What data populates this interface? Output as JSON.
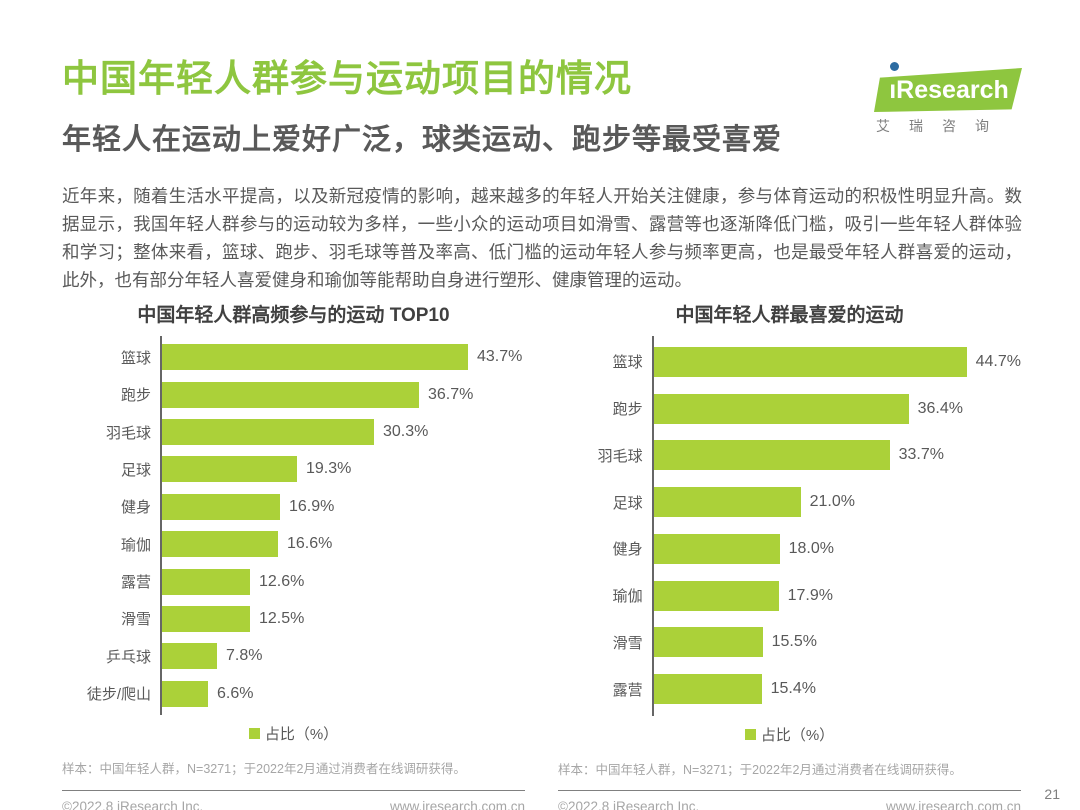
{
  "page": {
    "title": "中国年轻人群参与运动项目的情况",
    "subtitle": "年轻人在运动上爱好广泛，球类运动、跑步等最受喜爱",
    "body": "近年来，随着生活水平提高，以及新冠疫情的影响，越来越多的年轻人开始关注健康，参与体育运动的积极性明显升高。数据显示，我国年轻人群参与的运动较为多样，一些小众的运动项目如滑雪、露营等也逐渐降低门槛，吸引一些年轻人群体验和学习；整体来看，篮球、跑步、羽毛球等普及率高、低门槛的运动年轻人参与频率更高，也是最受年轻人群喜爱的运动，此外，也有部分年轻人喜爱健身和瑜伽等能帮助自身进行塑形、健康管理的运动。",
    "page_number": "21"
  },
  "logo": {
    "brand_text": "ıResearch",
    "subtext": "艾瑞咨询"
  },
  "colors": {
    "green_title": "#8ec63f",
    "green_bar": "#abd139",
    "blue_dot": "#2d6ca2",
    "text_dark": "#595959",
    "text_gray": "#a6a6a6"
  },
  "chart_data": [
    {
      "type": "bar",
      "orientation": "horizontal",
      "title": "中国年轻人群高频参与的运动 TOP10",
      "categories": [
        "篮球",
        "跑步",
        "羽毛球",
        "足球",
        "健身",
        "瑜伽",
        "露营",
        "滑雪",
        "乒乓球",
        "徒步/爬山"
      ],
      "values": [
        43.7,
        36.7,
        30.3,
        19.3,
        16.9,
        16.6,
        12.6,
        12.5,
        7.8,
        6.6
      ],
      "unit": "%",
      "xlim": [
        0,
        50
      ],
      "grid": false,
      "legend": "占比（%）",
      "legend_position": "bottom",
      "note": "样本：中国年轻人群，N=3271；于2022年2月通过消费者在线调研获得。"
    },
    {
      "type": "bar",
      "orientation": "horizontal",
      "title": "中国年轻人群最喜爱的运动",
      "categories": [
        "篮球",
        "跑步",
        "羽毛球",
        "足球",
        "健身",
        "瑜伽",
        "滑雪",
        "露营"
      ],
      "values": [
        44.7,
        36.4,
        33.7,
        21.0,
        18.0,
        17.9,
        15.5,
        15.4
      ],
      "unit": "%",
      "xlim": [
        0,
        50
      ],
      "grid": false,
      "legend": "占比（%）",
      "legend_position": "bottom",
      "note": "样本：中国年轻人群，N=3271；于2022年2月通过消费者在线调研获得。"
    }
  ],
  "footer": {
    "left": {
      "copyright": "©2022.8 iResearch Inc.",
      "url": "www.iresearch.com.cn"
    },
    "right": {
      "copyright": "©2022.8 iResearch Inc.",
      "url": "www.iresearch.com.cn"
    }
  }
}
